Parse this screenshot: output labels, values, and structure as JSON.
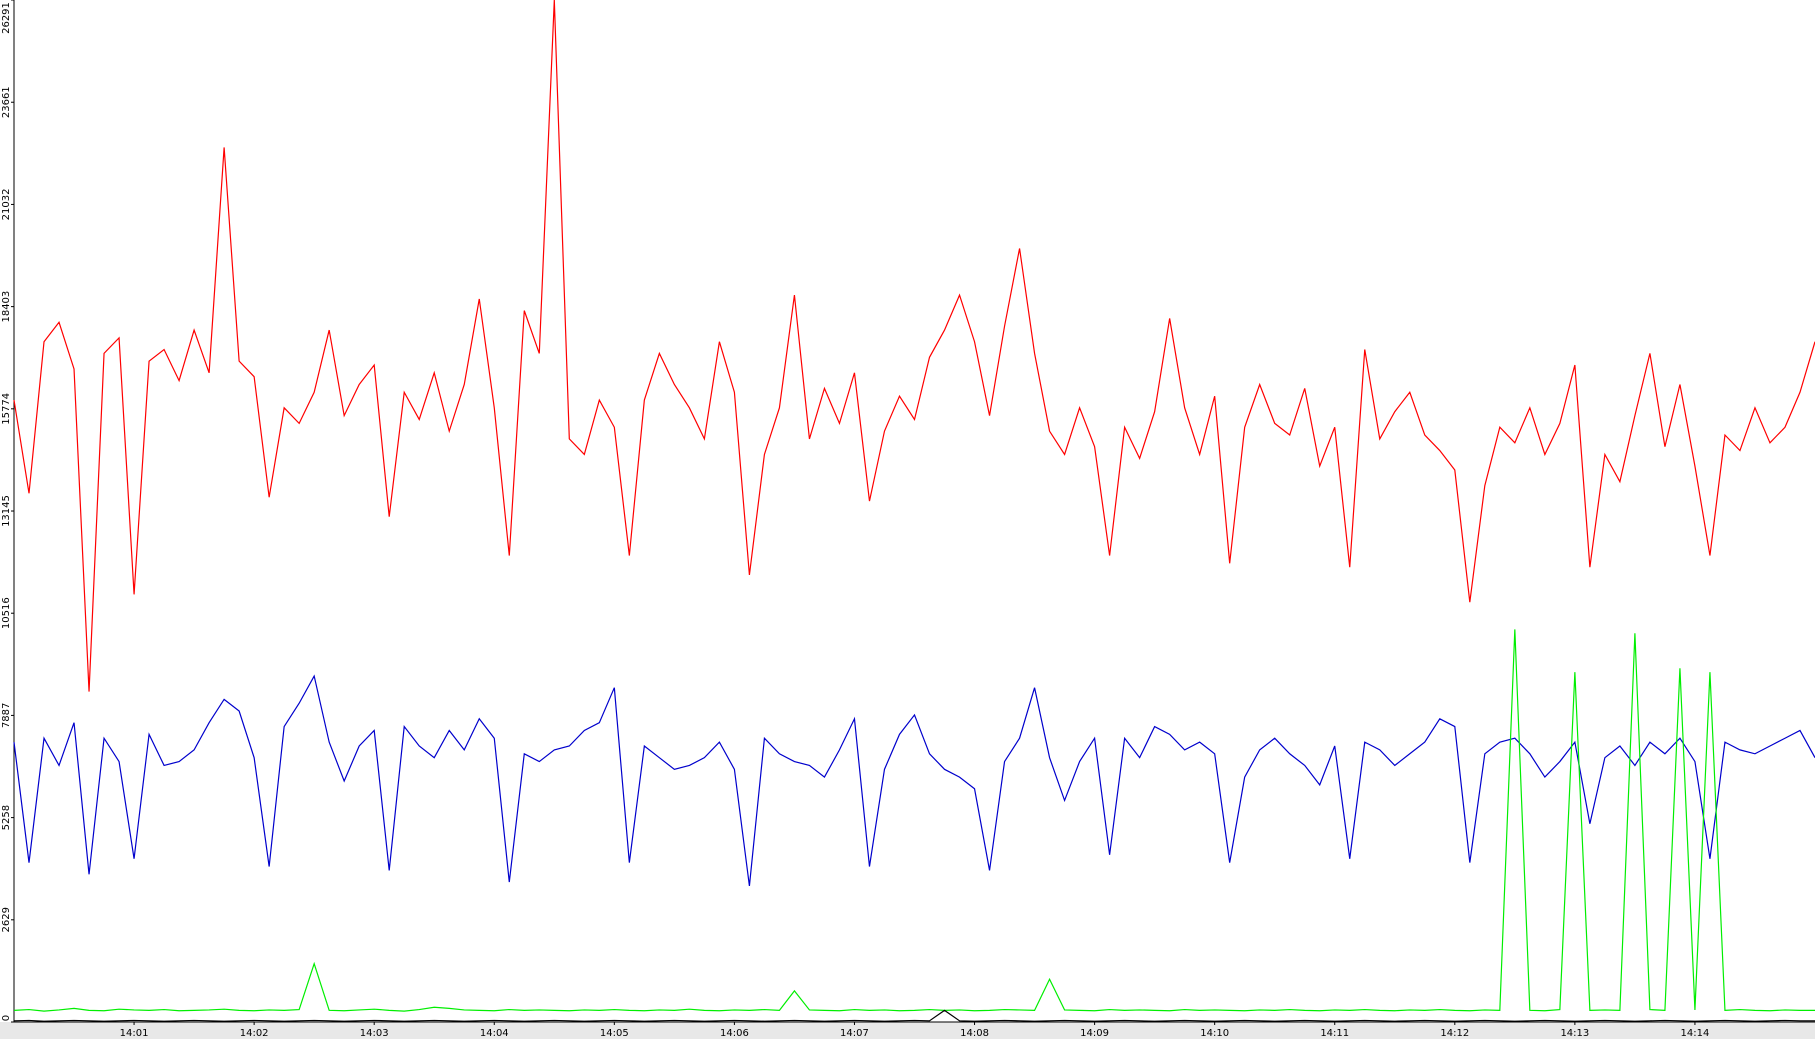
{
  "chart_data": {
    "type": "line",
    "x": [
      0,
      0.125,
      0.25,
      0.375,
      0.5,
      0.625,
      0.75,
      0.875,
      1,
      1.125,
      1.25,
      1.375,
      1.5,
      1.625,
      1.75,
      1.875,
      2,
      2.125,
      2.25,
      2.375,
      2.5,
      2.625,
      2.75,
      2.875,
      3,
      3.125,
      3.25,
      3.375,
      3.5,
      3.625,
      3.75,
      3.875,
      4,
      4.125,
      4.25,
      4.375,
      4.5,
      4.625,
      4.75,
      4.875,
      5,
      5.125,
      5.25,
      5.375,
      5.5,
      5.625,
      5.75,
      5.875,
      6,
      6.125,
      6.25,
      6.375,
      6.5,
      6.625,
      6.75,
      6.875,
      7,
      7.125,
      7.25,
      7.375,
      7.5,
      7.625,
      7.75,
      7.875,
      8,
      8.125,
      8.25,
      8.375,
      8.5,
      8.625,
      8.75,
      8.875,
      9,
      9.125,
      9.25,
      9.375,
      9.5,
      9.625,
      9.75,
      9.875,
      10,
      10.125,
      10.25,
      10.375,
      10.5,
      10.625,
      10.75,
      10.875,
      11,
      11.125,
      11.25,
      11.375,
      11.5,
      11.625,
      11.75,
      11.875,
      12,
      12.125,
      12.25,
      12.375,
      12.5,
      12.625,
      12.75,
      12.875,
      13,
      13.125,
      13.25,
      13.375,
      13.5,
      13.625,
      13.75,
      13.875,
      14,
      14.125,
      14.25,
      14.375,
      14.5,
      14.625,
      14.75,
      14.875,
      15
    ],
    "series": [
      {
        "color": "#ff0000",
        "values": [
          16000,
          13600,
          17500,
          18000,
          16800,
          8500,
          17200,
          17600,
          11000,
          17000,
          17300,
          16500,
          17800,
          16700,
          22500,
          17000,
          16600,
          13500,
          15800,
          15400,
          16200,
          17800,
          15600,
          16400,
          16900,
          13000,
          16200,
          15500,
          16700,
          15200,
          16400,
          18600,
          15800,
          12000,
          18300,
          17200,
          26291,
          15000,
          14600,
          16000,
          15300,
          12000,
          16000,
          17200,
          16400,
          15800,
          15000,
          17500,
          16200,
          11500,
          14600,
          15800,
          18700,
          15000,
          16300,
          15400,
          16700,
          13400,
          15200,
          16100,
          15500,
          17100,
          17800,
          18700,
          17500,
          15600,
          17900,
          19900,
          17200,
          15200,
          14600,
          15800,
          14800,
          12000,
          15300,
          14500,
          15700,
          18100,
          15800,
          14600,
          16100,
          11800,
          15300,
          16400,
          15400,
          15100,
          16300,
          14300,
          15300,
          11700,
          17300,
          15000,
          15700,
          16200,
          15100,
          14700,
          14200,
          10800,
          13800,
          15300,
          14900,
          15800,
          14600,
          15400,
          16900,
          11700,
          14600,
          13900,
          15600,
          17200,
          14800,
          16400,
          14300,
          12000,
          15100,
          14700,
          15800,
          14900,
          15300,
          16200,
          17500
        ]
      },
      {
        "color": "#0000cc",
        "values": [
          7200,
          4100,
          7300,
          6600,
          7700,
          3800,
          7300,
          6700,
          4200,
          7400,
          6600,
          6700,
          7000,
          7700,
          8300,
          8000,
          6800,
          4000,
          7600,
          8200,
          8900,
          7200,
          6200,
          7100,
          7500,
          3900,
          7600,
          7100,
          6800,
          7500,
          7000,
          7800,
          7300,
          3600,
          6900,
          6700,
          7000,
          7100,
          7500,
          7700,
          8600,
          4100,
          7100,
          6800,
          6500,
          6600,
          6800,
          7200,
          6500,
          3500,
          7300,
          6900,
          6700,
          6600,
          6300,
          7000,
          7800,
          4000,
          6500,
          7400,
          7900,
          6900,
          6500,
          6300,
          6000,
          3900,
          6700,
          7300,
          8600,
          6800,
          5700,
          6700,
          7300,
          4300,
          7300,
          6800,
          7600,
          7400,
          7000,
          7200,
          6900,
          4100,
          6300,
          7000,
          7300,
          6900,
          6600,
          6100,
          7100,
          4200,
          7200,
          7000,
          6600,
          6900,
          7200,
          7800,
          7600,
          4100,
          6900,
          7200,
          7300,
          6900,
          6300,
          6700,
          7200,
          5100,
          6800,
          7100,
          6600,
          7200,
          6900,
          7300,
          6700,
          4200,
          7200,
          7000,
          6900,
          7100,
          7300,
          7500,
          6800
        ]
      },
      {
        "color": "#00ee00",
        "values": [
          300,
          320,
          280,
          310,
          350,
          300,
          290,
          330,
          310,
          300,
          320,
          290,
          300,
          310,
          330,
          300,
          290,
          310,
          300,
          320,
          1500,
          300,
          290,
          310,
          330,
          300,
          280,
          320,
          380,
          350,
          310,
          300,
          290,
          320,
          300,
          310,
          300,
          290,
          310,
          300,
          320,
          300,
          290,
          310,
          300,
          330,
          300,
          290,
          310,
          300,
          320,
          300,
          800,
          310,
          300,
          290,
          320,
          300,
          310,
          290,
          300,
          320,
          300,
          310,
          290,
          300,
          320,
          310,
          300,
          1100,
          310,
          300,
          290,
          320,
          300,
          310,
          300,
          290,
          320,
          300,
          310,
          300,
          290,
          310,
          300,
          320,
          300,
          290,
          310,
          300,
          320,
          300,
          290,
          310,
          300,
          320,
          300,
          290,
          310,
          300,
          10100,
          300,
          290,
          320,
          9000,
          300,
          310,
          300,
          10000,
          320,
          300,
          9100,
          310,
          9000,
          300,
          320,
          300,
          290,
          310,
          300,
          300
        ]
      },
      {
        "color": "#000000",
        "values": [
          30,
          40,
          20,
          30,
          40,
          30,
          20,
          30,
          40,
          30,
          20,
          30,
          40,
          30,
          20,
          30,
          40,
          30,
          20,
          30,
          40,
          30,
          20,
          30,
          40,
          30,
          20,
          30,
          40,
          30,
          20,
          30,
          40,
          30,
          20,
          30,
          40,
          30,
          20,
          30,
          40,
          30,
          20,
          30,
          40,
          30,
          20,
          30,
          40,
          30,
          20,
          30,
          40,
          30,
          20,
          30,
          40,
          30,
          20,
          30,
          40,
          30,
          300,
          30,
          20,
          30,
          40,
          30,
          20,
          30,
          40,
          30,
          20,
          30,
          40,
          30,
          20,
          30,
          40,
          30,
          20,
          30,
          40,
          30,
          20,
          30,
          40,
          30,
          20,
          30,
          40,
          30,
          20,
          30,
          40,
          30,
          20,
          30,
          40,
          30,
          20,
          30,
          40,
          30,
          20,
          30,
          40,
          30,
          20,
          30,
          40,
          30,
          20,
          30,
          40,
          30,
          20,
          30,
          40,
          30,
          30
        ]
      }
    ],
    "xlim": [
      0,
      15
    ],
    "xticks": [
      {
        "value": 1,
        "label": "14:01"
      },
      {
        "value": 2,
        "label": "14:02"
      },
      {
        "value": 3,
        "label": "14:03"
      },
      {
        "value": 4,
        "label": "14:04"
      },
      {
        "value": 5,
        "label": "14:05"
      },
      {
        "value": 6,
        "label": "14:06"
      },
      {
        "value": 7,
        "label": "14:07"
      },
      {
        "value": 8,
        "label": "14:08"
      },
      {
        "value": 9,
        "label": "14:09"
      },
      {
        "value": 10,
        "label": "14:10"
      },
      {
        "value": 11,
        "label": "14:11"
      },
      {
        "value": 12,
        "label": "14:12"
      },
      {
        "value": 13,
        "label": "14:13"
      },
      {
        "value": 14,
        "label": "14:14"
      }
    ],
    "ylim": [
      0,
      26291
    ],
    "yticks": [
      0,
      2629,
      5258,
      7887,
      10516,
      13145,
      15774,
      18403,
      21032,
      23661,
      26291
    ]
  }
}
